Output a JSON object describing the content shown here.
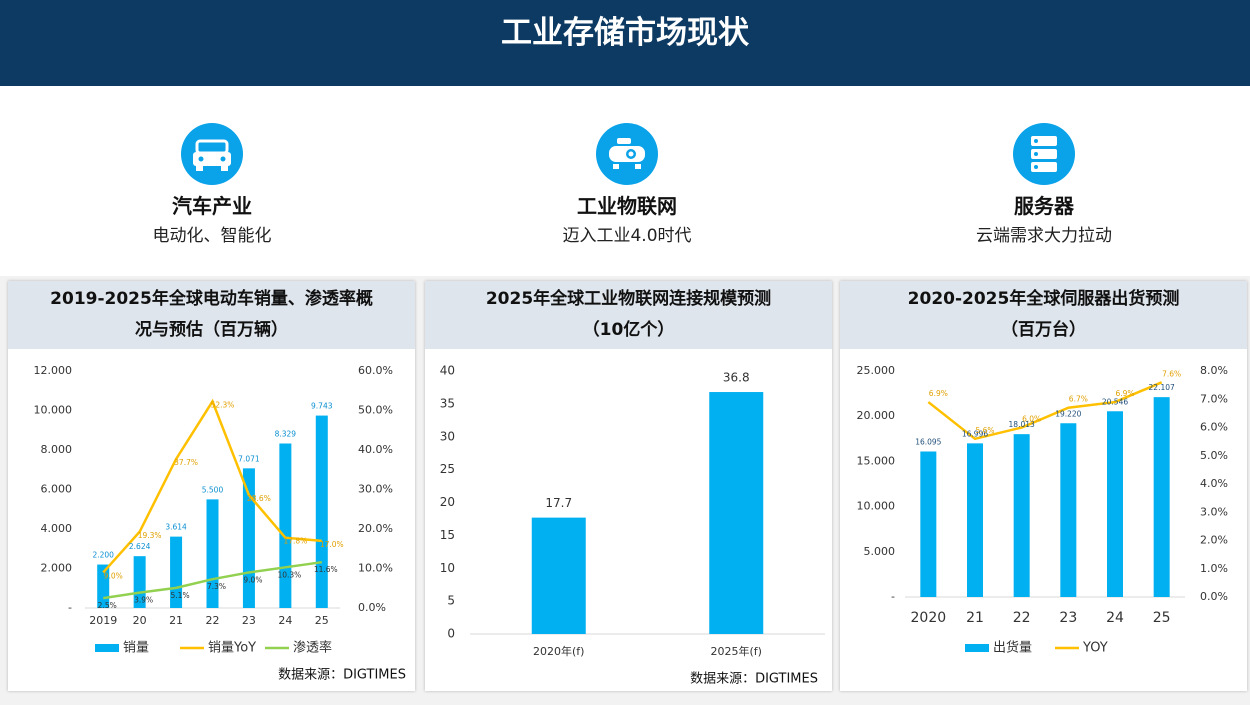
{
  "header": {
    "title": "工业存储市场现状"
  },
  "items": [
    {
      "title": "汽车产业",
      "subtitle": "电动化、智能化"
    },
    {
      "title": "工业物联网",
      "subtitle": "迈入工业4.0时代"
    },
    {
      "title": "服务器",
      "subtitle": "云端需求大力拉动"
    }
  ],
  "chart_data": [
    {
      "type": "combo",
      "title": "2019-2025年全球电动车销量、渗透率概况与预估（百万辆）",
      "categories": [
        "2019",
        "20",
        "21",
        "22",
        "23",
        "24",
        "25"
      ],
      "series": [
        {
          "name": "销量",
          "mark": "bar",
          "color": "#00b0f0",
          "values": [
            2.2,
            2.624,
            3.614,
            5.5,
            7.071,
            8.329,
            9.743
          ],
          "value_labels": [
            "2.200",
            "2.624",
            "3.614",
            "5.500",
            "7.071",
            "8.329",
            "9.743"
          ]
        },
        {
          "name": "销量YoY",
          "mark": "line",
          "axis": "y2",
          "color": "#ffc000",
          "values": [
            9.0,
            19.3,
            37.7,
            52.3,
            28.6,
            17.8,
            17.0
          ],
          "value_labels": [
            "9.0%",
            "19.3%",
            "37.7%",
            "52.3%",
            "28.6%",
            "17.8%",
            "17.0%"
          ]
        },
        {
          "name": "渗透率",
          "mark": "line",
          "axis": "y2",
          "color": "#92d050",
          "values": [
            2.5,
            3.9,
            5.1,
            7.3,
            9.0,
            10.3,
            11.6
          ],
          "value_labels": [
            "2.5%",
            "3.9%",
            "5.1%",
            "7.3%",
            "9.0%",
            "10.3%",
            "11.6%"
          ]
        }
      ],
      "ylim": [
        0,
        12
      ],
      "yticks": [
        {
          "value": 0,
          "label": "-"
        },
        {
          "value": 2,
          "label": "2.000"
        },
        {
          "value": 4,
          "label": "4.000"
        },
        {
          "value": 6,
          "label": "6.000"
        },
        {
          "value": 8,
          "label": "8.000"
        },
        {
          "value": 10,
          "label": "10.000"
        },
        {
          "value": 12,
          "label": "12.000"
        }
      ],
      "y2lim": [
        0,
        60
      ],
      "y2ticks": [
        {
          "value": 0,
          "label": "0.0%"
        },
        {
          "value": 10,
          "label": "10.0%"
        },
        {
          "value": 20,
          "label": "20.0%"
        },
        {
          "value": 30,
          "label": "30.0%"
        },
        {
          "value": 40,
          "label": "40.0%"
        },
        {
          "value": 50,
          "label": "50.0%"
        },
        {
          "value": 60,
          "label": "60.0%"
        }
      ],
      "source": "数据来源：DIGTIMES"
    },
    {
      "type": "bar",
      "title": "2025年全球工业物联网连接规模预测（10亿个）",
      "categories": [
        "2020年(f)",
        "2025年(f)"
      ],
      "series": [
        {
          "mark": "bar",
          "color": "#00b0f0",
          "values": [
            17.7,
            36.8
          ]
        }
      ],
      "ylim": [
        0,
        40
      ],
      "yticks": [
        0,
        5,
        10,
        15,
        20,
        25,
        30,
        35,
        40
      ],
      "source": "数据来源：DIGTIMES"
    },
    {
      "type": "combo",
      "title": "2020-2025年全球伺服器出货预测（百万台）",
      "categories": [
        "2020",
        "21",
        "22",
        "23",
        "24",
        "25"
      ],
      "series": [
        {
          "name": "出货量",
          "mark": "bar",
          "color": "#00b0f0",
          "values": [
            16.095,
            16.996,
            18.013,
            19.22,
            20.546,
            22.107
          ],
          "value_labels": [
            "16.095",
            "16.996",
            "18.013",
            "19.220",
            "20.546",
            "22.107"
          ]
        },
        {
          "name": "YOY",
          "mark": "line",
          "axis": "y2",
          "color": "#ffc000",
          "values": [
            6.9,
            5.6,
            6.0,
            6.7,
            6.9,
            7.6
          ],
          "value_labels": [
            "6.9%",
            "5.6%",
            "6.0%",
            "6.7%",
            "6.9%",
            "7.6%"
          ]
        }
      ],
      "ylim": [
        0,
        25
      ],
      "yticks": [
        {
          "value": 0,
          "label": "-"
        },
        {
          "value": 5,
          "label": "5.000"
        },
        {
          "value": 10,
          "label": "10.000"
        },
        {
          "value": 15,
          "label": "15.000"
        },
        {
          "value": 20,
          "label": "20.000"
        },
        {
          "value": 25,
          "label": "25.000"
        }
      ],
      "y2lim": [
        0,
        8
      ],
      "y2ticks": [
        {
          "value": 0,
          "label": "0.0%"
        },
        {
          "value": 1,
          "label": "1.0%"
        },
        {
          "value": 2,
          "label": "2.0%"
        },
        {
          "value": 3,
          "label": "3.0%"
        },
        {
          "value": 4,
          "label": "4.0%"
        },
        {
          "value": 5,
          "label": "5.0%"
        },
        {
          "value": 6,
          "label": "6.0%"
        },
        {
          "value": 7,
          "label": "7.0%"
        },
        {
          "value": 8,
          "label": "8.0%"
        }
      ]
    }
  ]
}
